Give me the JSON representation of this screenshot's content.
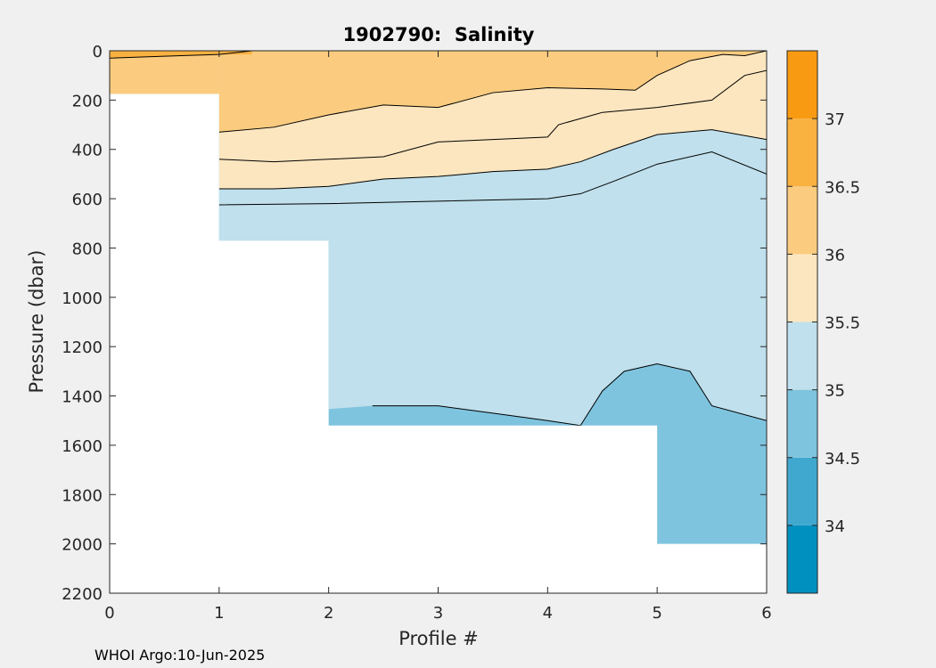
{
  "figure": {
    "footer": "WHOI Argo:10-Jun-2025"
  },
  "chart_data": {
    "type": "heatmap",
    "title": "1902790:  Salinity",
    "xlabel": "Profile #",
    "ylabel": "Pressure (dbar)",
    "xlim": [
      0,
      6
    ],
    "ylim": [
      0,
      2200
    ],
    "y_reversed": true,
    "x_ticks": [
      "0",
      "1",
      "2",
      "3",
      "4",
      "5",
      "6"
    ],
    "y_ticks": [
      "0",
      "200",
      "400",
      "600",
      "800",
      "1000",
      "1200",
      "1400",
      "1600",
      "1800",
      "2000",
      "2200"
    ],
    "grid": false,
    "colorbar": {
      "ticks": [
        "34",
        "34.5",
        "35",
        "35.5",
        "36",
        "36.5",
        "37"
      ],
      "levels": [
        {
          "range": [
            33.5,
            34.0
          ],
          "color": "#0090bf"
        },
        {
          "range": [
            34.0,
            34.5
          ],
          "color": "#40a8cf"
        },
        {
          "range": [
            34.5,
            35.0
          ],
          "color": "#7fc4df"
        },
        {
          "range": [
            35.0,
            35.5
          ],
          "color": "#bfe0ec"
        },
        {
          "range": [
            35.5,
            36.0
          ],
          "color": "#fce6bf"
        },
        {
          "range": [
            36.0,
            36.5
          ],
          "color": "#fbcc7f"
        },
        {
          "range": [
            36.5,
            37.0
          ],
          "color": "#f9b140"
        },
        {
          "range": [
            37.0,
            37.5
          ],
          "color": "#f99b12"
        }
      ]
    },
    "profile_max_pressure": [
      {
        "x": [
          0,
          1
        ],
        "max_pressure": 175
      },
      {
        "x": [
          1,
          2
        ],
        "max_pressure": 770
      },
      {
        "x": [
          2,
          5
        ],
        "max_pressure": 1520
      },
      {
        "x": [
          5,
          6
        ],
        "max_pressure": 2000
      }
    ],
    "contours": [
      {
        "level": 36.5,
        "x": [
          0,
          0.5,
          1.0,
          1.3
        ],
        "pressure": [
          30,
          22,
          15,
          0
        ]
      },
      {
        "level": 36.0,
        "x": [
          1,
          1.5,
          2,
          2.5,
          3,
          3.5,
          4,
          4.5,
          4.8,
          5.0,
          5.3,
          5.6,
          5.8,
          6.0
        ],
        "pressure": [
          330,
          310,
          260,
          220,
          230,
          170,
          150,
          155,
          160,
          100,
          40,
          15,
          20,
          0
        ]
      },
      {
        "level": 35.5,
        "x": [
          1,
          1.5,
          2,
          2.5,
          3,
          3.5,
          4,
          4.1,
          4.5,
          5,
          5.5,
          5.8,
          6.0
        ],
        "pressure": [
          440,
          450,
          440,
          430,
          370,
          360,
          350,
          300,
          250,
          230,
          200,
          100,
          80
        ]
      },
      {
        "level": 35.0,
        "x": [
          1,
          1.5,
          2,
          2.5,
          3,
          3.5,
          4,
          4.3,
          4.6,
          5,
          5.5,
          6.0
        ],
        "pressure": [
          560,
          560,
          550,
          520,
          510,
          490,
          480,
          450,
          400,
          340,
          320,
          360
        ]
      },
      {
        "level": 35.0,
        "x": [
          1,
          2,
          3,
          4,
          4.3,
          4.6,
          5,
          5.5,
          6.0
        ],
        "pressure": [
          625,
          620,
          610,
          600,
          580,
          530,
          460,
          410,
          500
        ]
      },
      {
        "level": 34.5,
        "x": [
          2.4,
          3.0,
          3.5,
          4.0,
          4.3,
          4.5,
          4.7,
          5.0,
          5.3,
          5.5,
          6.0
        ],
        "pressure": [
          1440,
          1440,
          1470,
          1500,
          1520,
          1380,
          1300,
          1270,
          1300,
          1440,
          1500
        ]
      }
    ]
  }
}
